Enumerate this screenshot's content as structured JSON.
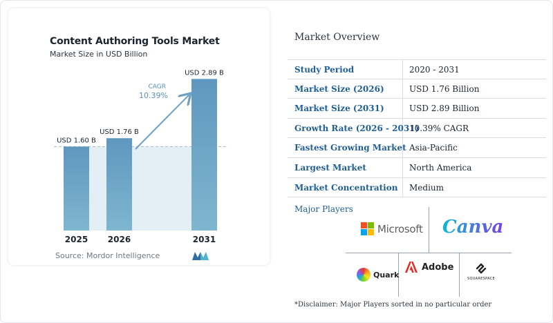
{
  "chart_data": {
    "type": "bar",
    "title": "Content Authoring Tools Market",
    "subtitle": "Market Size in USD Billion",
    "categories": [
      "2025",
      "2026",
      "2031"
    ],
    "values": [
      1.6,
      1.76,
      2.89
    ],
    "data_labels": [
      "USD 1.60 B",
      "USD 1.76 B",
      "USD 2.89 B"
    ],
    "cagr_label": "CAGR",
    "cagr_value": "10.39%",
    "ylim": [
      0,
      3.0
    ],
    "grid": false,
    "colors": {
      "bar_top": "#5f97bf",
      "bar_bottom": "#7fb6cf",
      "area": "#e3eef5",
      "arrow": "#6f9fc4",
      "cagr_text": "#5b8fb9"
    }
  },
  "source": "Source: Mordor Intelligence",
  "brand_logo_icon": "mordor-logo-icon",
  "overview": {
    "title": "Market Overview",
    "rows": [
      {
        "label": "Study Period",
        "value": "2020 - 2031"
      },
      {
        "label": "Market Size (2026)",
        "value": "USD 1.76 Billion"
      },
      {
        "label": "Market Size (2031)",
        "value": "USD 2.89 Billion"
      },
      {
        "label": "Growth Rate (2026 - 2031)",
        "value": "10.39% CAGR"
      },
      {
        "label": "Fastest Growing Market",
        "value": "Asia-Pacific"
      },
      {
        "label": "Largest Market",
        "value": "North America"
      },
      {
        "label": "Market Concentration",
        "value": "Medium"
      }
    ]
  },
  "players": {
    "title": "Major Players",
    "microsoft": "Microsoft",
    "canva": "Canva",
    "quark": "Quark",
    "adobe": "Adobe",
    "squarespace": "SQUARESPACE"
  },
  "disclaimer": "*Disclaimer: Major Players sorted in no particular order"
}
